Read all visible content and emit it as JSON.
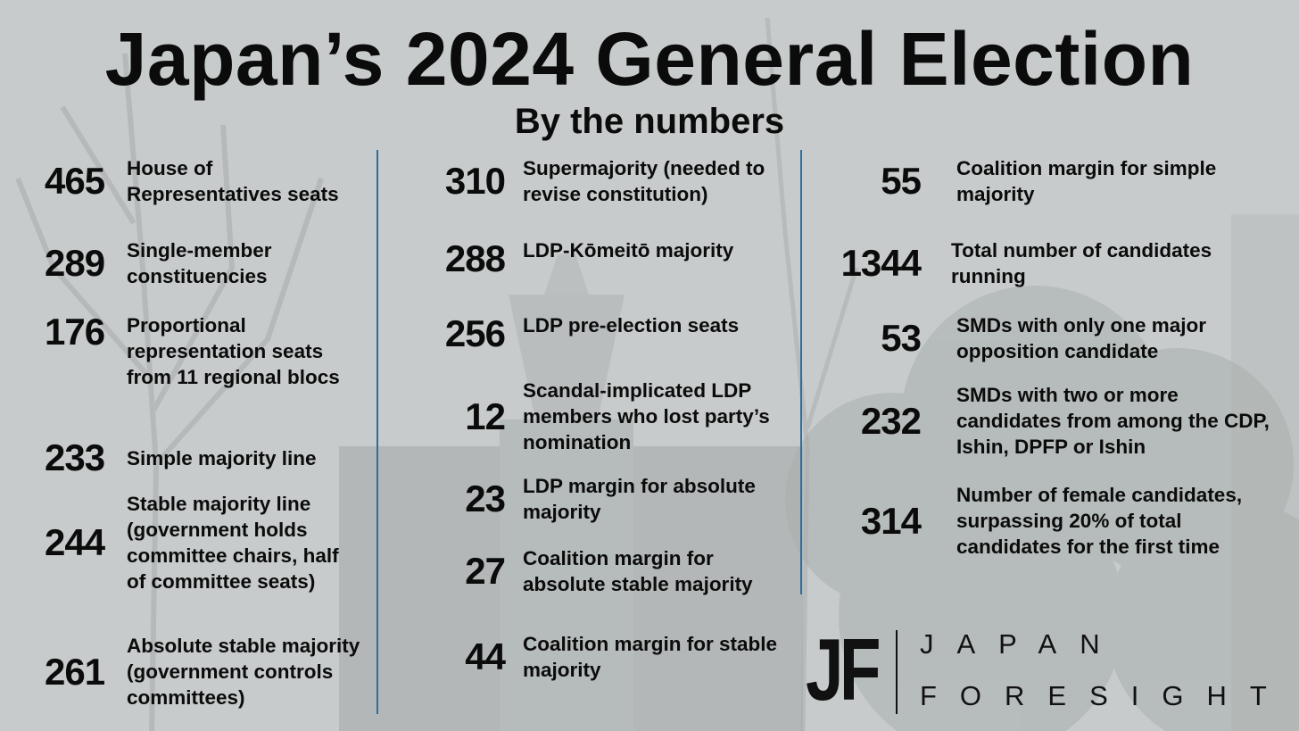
{
  "title": "Japan’s 2024 General Election",
  "subtitle": "By the numbers",
  "columns": [
    [
      {
        "value": "465",
        "label": "House of Representatives seats"
      },
      {
        "value": "289",
        "label": "Single-member constituencies"
      },
      {
        "value": "176",
        "label": "Proportional representation seats from 11 regional blocs"
      },
      {
        "value": "233",
        "label": "Simple majority line"
      },
      {
        "value": "244",
        "label": "Stable majority line (government holds committee chairs, half of committee seats)"
      },
      {
        "value": "261",
        "label": "Absolute stable majority (government controls committees)"
      }
    ],
    [
      {
        "value": "310",
        "label": "Supermajority (needed to revise constitution)"
      },
      {
        "value": "288",
        "label": "LDP-Kōmeitō majority"
      },
      {
        "value": "256",
        "label": "LDP pre-election seats"
      },
      {
        "value": "12",
        "label": "Scandal-implicated LDP members who lost party’s nomination"
      },
      {
        "value": "23",
        "label": "LDP margin for absolute majority"
      },
      {
        "value": "27",
        "label": "Coalition margin for absolute stable majority"
      },
      {
        "value": "44",
        "label": "Coalition margin for stable majority"
      }
    ],
    [
      {
        "value": "55",
        "label": "Coalition margin for simple majority"
      },
      {
        "value": "1344",
        "label": "Total number of candidates running"
      },
      {
        "value": "53",
        "label": "SMDs with only one major opposition candidate"
      },
      {
        "value": "232",
        "label": "SMDs with two or more candidates from among the CDP, Ishin, DPFP or Ishin"
      },
      {
        "value": "314",
        "label": "Number of female candidates, surpassing 20% of total candidates for the first time"
      }
    ]
  ],
  "logo": {
    "mark": "JF",
    "word1": "JAPAN",
    "word2": "FORESIGHT"
  },
  "colors": {
    "divider": "#2e6e9e",
    "text": "#0b0b0b"
  }
}
